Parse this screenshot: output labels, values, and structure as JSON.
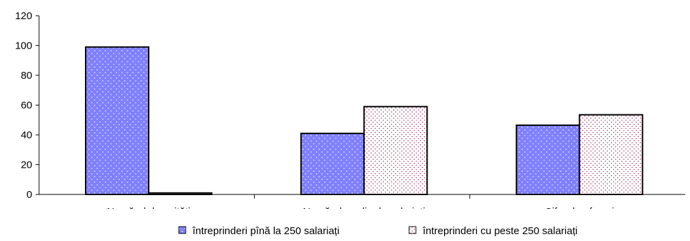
{
  "chart_data": {
    "type": "bar",
    "categories": [
      "Numărul de unități",
      "Numărul mediu de salariați",
      "Cifra de afaceri"
    ],
    "series": [
      {
        "name": "întreprinderi pînă la  250 salariați",
        "values": [
          99,
          41,
          46.5
        ],
        "color": "#8080ff",
        "pattern": "dots-white"
      },
      {
        "name": "întreprinderi cu peste 250 salariați",
        "values": [
          1,
          59,
          53.5
        ],
        "color": "#ffffff",
        "pattern": "dots-maroon"
      }
    ],
    "title": "",
    "xlabel": "",
    "ylabel": "",
    "ylim": [
      0,
      120
    ],
    "yticks": [
      0,
      20,
      40,
      60,
      80,
      100,
      120
    ],
    "grid": false,
    "legend": "bottom"
  }
}
